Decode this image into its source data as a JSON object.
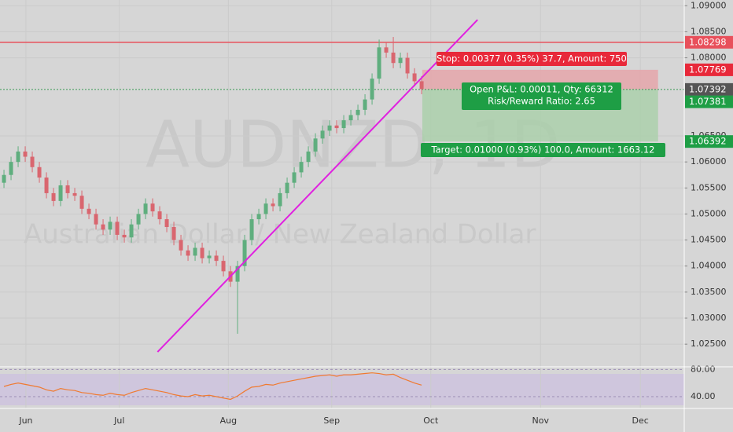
{
  "chart_data": [
    {
      "type": "candlestick",
      "title": "AUDNZD, 1D",
      "subtitle": "Australian Dollar / New Zealand Dollar",
      "categories": [
        null,
        null,
        null,
        null,
        null,
        null,
        null,
        null,
        null,
        null,
        null,
        null,
        null,
        null,
        null,
        null,
        null,
        null,
        null,
        null,
        null,
        null,
        null,
        null,
        null,
        null,
        null,
        null,
        null,
        null,
        null,
        null,
        null,
        null,
        null,
        null,
        null,
        null,
        null,
        null,
        null,
        null,
        null,
        null,
        null,
        null,
        null,
        null,
        null,
        null,
        null,
        null,
        null,
        null,
        null,
        null,
        null,
        null,
        null,
        null
      ],
      "open": [
        1.056,
        1.0575,
        1.06,
        1.062,
        1.061,
        1.059,
        1.057,
        1.054,
        1.0525,
        1.0555,
        1.054,
        1.0535,
        1.051,
        1.05,
        1.048,
        1.047,
        1.0485,
        1.046,
        1.0455,
        1.048,
        1.05,
        1.052,
        1.0505,
        1.049,
        1.0475,
        1.045,
        1.043,
        1.042,
        1.0435,
        1.0415,
        1.042,
        1.041,
        1.039,
        1.037,
        1.04,
        1.045,
        1.049,
        1.05,
        1.052,
        1.0515,
        1.054,
        1.056,
        1.058,
        1.06,
        1.062,
        1.0645,
        1.066,
        1.067,
        1.0665,
        1.068,
        1.069,
        1.07,
        1.072,
        1.076,
        1.082,
        1.081,
        1.079,
        1.08,
        1.077,
        1.0755
      ],
      "high": [
        1.0585,
        1.061,
        1.063,
        1.063,
        1.062,
        1.06,
        1.058,
        1.055,
        1.0565,
        1.0565,
        1.055,
        1.0545,
        1.052,
        1.051,
        1.049,
        1.0495,
        1.0495,
        1.047,
        1.049,
        1.051,
        1.053,
        1.053,
        1.0515,
        1.05,
        1.0485,
        1.046,
        1.044,
        1.0445,
        1.0445,
        1.043,
        1.043,
        1.042,
        1.04,
        1.041,
        1.046,
        1.05,
        1.051,
        1.053,
        1.053,
        1.055,
        1.057,
        1.059,
        1.061,
        1.063,
        1.0655,
        1.067,
        1.068,
        1.068,
        1.069,
        1.07,
        1.071,
        1.073,
        1.077,
        1.0835,
        1.083,
        1.084,
        1.081,
        1.081,
        1.078,
        1.0765
      ],
      "low": [
        1.055,
        1.0565,
        1.059,
        1.06,
        1.058,
        1.056,
        1.053,
        1.0515,
        1.0515,
        1.053,
        1.0525,
        1.05,
        1.049,
        1.047,
        1.046,
        1.046,
        1.045,
        1.0445,
        1.0445,
        1.047,
        1.049,
        1.0495,
        1.048,
        1.0465,
        1.044,
        1.042,
        1.041,
        1.041,
        1.0405,
        1.0405,
        1.04,
        1.038,
        1.036,
        1.027,
        1.039,
        1.044,
        1.048,
        1.049,
        1.0505,
        1.0505,
        1.053,
        1.055,
        1.057,
        1.059,
        1.061,
        1.0635,
        1.065,
        1.0655,
        1.0655,
        1.067,
        1.068,
        1.069,
        1.071,
        1.075,
        1.08,
        1.078,
        1.078,
        1.076,
        1.0745,
        1.073
      ],
      "close": [
        1.0575,
        1.06,
        1.062,
        1.061,
        1.059,
        1.057,
        1.054,
        1.0525,
        1.0555,
        1.054,
        1.0535,
        1.051,
        1.05,
        1.048,
        1.047,
        1.0485,
        1.046,
        1.0455,
        1.048,
        1.05,
        1.052,
        1.0505,
        1.049,
        1.0475,
        1.045,
        1.043,
        1.042,
        1.0435,
        1.0415,
        1.042,
        1.041,
        1.039,
        1.037,
        1.04,
        1.045,
        1.049,
        1.05,
        1.052,
        1.0515,
        1.054,
        1.056,
        1.058,
        1.06,
        1.062,
        1.0645,
        1.066,
        1.067,
        1.0665,
        1.068,
        1.069,
        1.07,
        1.072,
        1.076,
        1.082,
        1.081,
        1.079,
        1.08,
        1.077,
        1.0755,
        1.074
      ],
      "up_color": "#5fae7e",
      "down_color": "#d9666f",
      "xlim": [
        -0.56,
        96.1
      ],
      "xticks": [
        {
          "value": 3.1,
          "label": "Jun"
        },
        {
          "value": 16.3,
          "label": "Jul"
        },
        {
          "value": 31.7,
          "label": "Aug"
        },
        {
          "value": 46.3,
          "label": "Sep"
        },
        {
          "value": 60.3,
          "label": "Oct"
        },
        {
          "value": 75.8,
          "label": "Nov"
        },
        {
          "value": 89.9,
          "label": "Dec"
        }
      ],
      "ylim": [
        1.0208,
        1.0911
      ],
      "yticks": [
        {
          "value": 1.09,
          "label": "1.09000"
        },
        {
          "value": 1.085,
          "label": "1.08500"
        },
        {
          "value": 1.08,
          "label": "1.08000"
        },
        {
          "value": 1.065,
          "label": "1.06500"
        },
        {
          "value": 1.06,
          "label": "1.06000"
        },
        {
          "value": 1.055,
          "label": "1.05500"
        },
        {
          "value": 1.05,
          "label": "1.05000"
        },
        {
          "value": 1.045,
          "label": "1.04500"
        },
        {
          "value": 1.04,
          "label": "1.04000"
        },
        {
          "value": 1.035,
          "label": "1.03500"
        },
        {
          "value": 1.03,
          "label": "1.03000"
        },
        {
          "value": 1.025,
          "label": "1.02500"
        }
      ],
      "grid": true,
      "price_labels": [
        {
          "value": 1.08298,
          "label": "1.08298",
          "color": "#e8505b"
        },
        {
          "value": 1.07769,
          "label": "1.07769",
          "color": "#e8293a"
        },
        {
          "value": 1.07392,
          "label": "1.07392",
          "color": "#555555"
        },
        {
          "value": 1.07381,
          "label": "1.07381",
          "color": "#1e9e45"
        },
        {
          "value": 1.06392,
          "label": "1.06392",
          "color": "#1e9e45"
        }
      ],
      "trendline": {
        "x": [
          21.7,
          66.9
        ],
        "y": [
          1.0235,
          1.0873
        ],
        "color": "#e020e0"
      },
      "position": {
        "x": [
          59.1,
          92.4
        ],
        "stop_text": "Stop: 0.00377 (0.35%) 37.7, Amount: 750",
        "pnl_text": "Open P&L: 0.00011, Qty: 66312",
        "rr_text": "Risk/Reward Ratio: 2.65",
        "target_text": "Target: 0.01000 (0.93%) 100.0, Amount: 1663.12"
      }
    },
    {
      "type": "line",
      "values": [
        55,
        58,
        60,
        58,
        56,
        54,
        50,
        48,
        52,
        50,
        49,
        46,
        45,
        43,
        42,
        45,
        43,
        42,
        46,
        49,
        52,
        50,
        48,
        46,
        43,
        41,
        40,
        43,
        41,
        42,
        40,
        38,
        36,
        41,
        48,
        54,
        55,
        58,
        57,
        60,
        62,
        64,
        66,
        68,
        70,
        71,
        72,
        70,
        72,
        72,
        73,
        74,
        75,
        74,
        72,
        73,
        68,
        64,
        60,
        57
      ],
      "color": "#f07a30",
      "ylim": [
        25,
        85
      ],
      "yticks": [
        {
          "value": 80,
          "label": "80.00"
        },
        {
          "value": 40,
          "label": "40.00"
        }
      ]
    }
  ]
}
